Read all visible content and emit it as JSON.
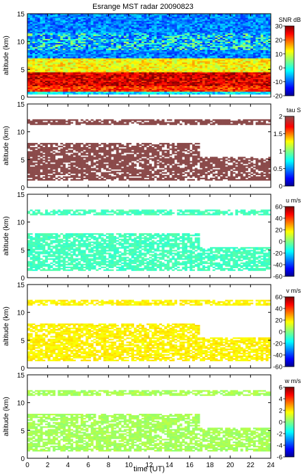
{
  "title": "Esrange MST radar 20090823",
  "xlabel": "time (UT)",
  "chart_data": [
    {
      "type": "heatmap",
      "title": "Esrange MST radar 20090823",
      "xlabel": "",
      "ylabel": "altitude (km)",
      "xlim": [
        0,
        24
      ],
      "ylim": [
        0,
        15
      ],
      "x_ticks": [
        "0",
        "2",
        "4",
        "6",
        "8",
        "10",
        "12",
        "14",
        "16",
        "18",
        "20",
        "22",
        "24"
      ],
      "y_ticks": [
        "0",
        "5",
        "10",
        "15"
      ],
      "colorbar": {
        "label": "SNR dB",
        "min": -20,
        "max": 30,
        "ticks": [
          "30",
          "20",
          "10",
          "0",
          "-10",
          "-20"
        ]
      },
      "layers": [
        {
          "alt_range": [
            0.5,
            1.0
          ],
          "value": -3
        },
        {
          "alt_range": [
            1.0,
            2.0
          ],
          "value": 22
        },
        {
          "alt_range": [
            2.0,
            4.5
          ],
          "value": 26
        },
        {
          "alt_range": [
            4.5,
            7.0
          ],
          "value": 12
        },
        {
          "alt_range": [
            7.0,
            15.0
          ],
          "value": -8
        }
      ],
      "features": [
        {
          "kind": "tropopause layer",
          "time": [
            0,
            24
          ],
          "alt": [
            8.5,
            11.5
          ],
          "value": 3
        }
      ]
    },
    {
      "type": "heatmap",
      "ylabel": "altitude (km)",
      "xlim": [
        0,
        24
      ],
      "ylim": [
        0,
        15
      ],
      "x_ticks": [
        "0",
        "2",
        "4",
        "6",
        "8",
        "10",
        "12",
        "14",
        "16",
        "18",
        "20",
        "22",
        "24"
      ],
      "y_ticks": [
        "0",
        "5",
        "10",
        "15"
      ],
      "colorbar": {
        "label": "tau S",
        "min": 0,
        "max": 2,
        "ticks": [
          "2",
          "1.5",
          "1",
          "0.5",
          "0"
        ]
      },
      "typical_value": 1.9,
      "coverage": [
        {
          "time": [
            0,
            24
          ],
          "alt": [
            1.2,
            5.5
          ]
        },
        {
          "time": [
            0,
            17
          ],
          "alt": [
            5.5,
            8.0
          ]
        },
        {
          "time": [
            0,
            24
          ],
          "alt": [
            11.2,
            12.2
          ]
        }
      ]
    },
    {
      "type": "heatmap",
      "ylabel": "altitude (km)",
      "xlim": [
        0,
        24
      ],
      "ylim": [
        0,
        15
      ],
      "x_ticks": [
        "0",
        "2",
        "4",
        "6",
        "8",
        "10",
        "12",
        "14",
        "16",
        "18",
        "20",
        "22",
        "24"
      ],
      "y_ticks": [
        "0",
        "5",
        "10",
        "15"
      ],
      "colorbar": {
        "label": "u m/s",
        "min": -60,
        "max": 60,
        "ticks": [
          "60",
          "40",
          "20",
          "0",
          "-20",
          "-40",
          "-60"
        ]
      },
      "typical_value": -8,
      "coverage": [
        {
          "time": [
            0,
            24
          ],
          "alt": [
            1.2,
            5.5
          ]
        },
        {
          "time": [
            0,
            17
          ],
          "alt": [
            5.5,
            8.0
          ]
        },
        {
          "time": [
            0,
            24
          ],
          "alt": [
            11.2,
            12.2
          ]
        }
      ]
    },
    {
      "type": "heatmap",
      "ylabel": "altitude (km)",
      "xlim": [
        0,
        24
      ],
      "ylim": [
        0,
        15
      ],
      "x_ticks": [
        "0",
        "2",
        "4",
        "6",
        "8",
        "10",
        "12",
        "14",
        "16",
        "18",
        "20",
        "22",
        "24"
      ],
      "y_ticks": [
        "0",
        "5",
        "10",
        "15"
      ],
      "colorbar": {
        "label": "v m/s",
        "min": -60,
        "max": 60,
        "ticks": [
          "60",
          "40",
          "20",
          "0",
          "-20",
          "-40",
          "-60"
        ]
      },
      "typical_value": 18,
      "coverage": [
        {
          "time": [
            0,
            24
          ],
          "alt": [
            1.2,
            5.5
          ]
        },
        {
          "time": [
            0,
            17
          ],
          "alt": [
            5.5,
            8.0
          ]
        },
        {
          "time": [
            0,
            24
          ],
          "alt": [
            11.2,
            12.2
          ]
        }
      ]
    },
    {
      "type": "heatmap",
      "ylabel": "altitude (km)",
      "xlabel": "time (UT)",
      "xlim": [
        0,
        24
      ],
      "ylim": [
        0,
        15
      ],
      "x_ticks": [
        "0",
        "2",
        "4",
        "6",
        "8",
        "10",
        "12",
        "14",
        "16",
        "18",
        "20",
        "22",
        "24"
      ],
      "y_ticks": [
        "0",
        "5",
        "10",
        "15"
      ],
      "colorbar": {
        "label": "w m/s",
        "min": -6,
        "max": 6,
        "ticks": [
          "6",
          "4",
          "2",
          "0",
          "-2",
          "-4",
          "-6"
        ]
      },
      "typical_value": 0.5,
      "coverage": [
        {
          "time": [
            0,
            24
          ],
          "alt": [
            1.2,
            5.5
          ]
        },
        {
          "time": [
            0,
            17
          ],
          "alt": [
            5.5,
            8.0
          ]
        },
        {
          "time": [
            0,
            24
          ],
          "alt": [
            11.2,
            12.2
          ]
        }
      ]
    }
  ]
}
